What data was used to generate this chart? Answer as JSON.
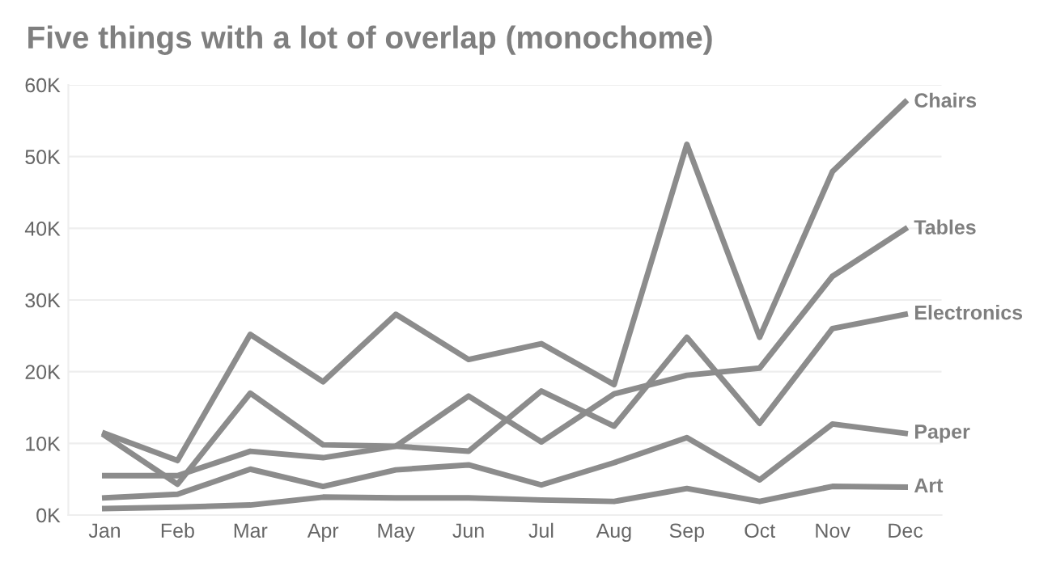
{
  "chart_data": {
    "type": "line",
    "title": "Five things with a lot of overlap (monochome)",
    "categories": [
      "Jan",
      "Feb",
      "Mar",
      "Apr",
      "May",
      "Jun",
      "Jul",
      "Aug",
      "Sep",
      "Oct",
      "Nov",
      "Dec"
    ],
    "series": [
      {
        "name": "Chairs",
        "color": "#8c8c8c",
        "values": [
          11.4,
          7.6,
          25.2,
          18.6,
          28.0,
          21.7,
          23.9,
          18.2,
          51.7,
          24.8,
          47.9,
          57.6
        ]
      },
      {
        "name": "Tables",
        "color": "#8c8c8c",
        "values": [
          5.5,
          5.5,
          8.9,
          8.0,
          9.6,
          16.6,
          10.2,
          16.9,
          19.5,
          20.5,
          33.3,
          39.9
        ]
      },
      {
        "name": "Electronics",
        "color": "#8c8c8c",
        "values": [
          11.1,
          4.3,
          17.0,
          9.8,
          9.6,
          8.9,
          17.3,
          12.4,
          24.8,
          12.8,
          26.0,
          28.0
        ]
      },
      {
        "name": "Paper",
        "color": "#8c8c8c",
        "values": [
          2.4,
          2.9,
          6.4,
          4.0,
          6.3,
          7.0,
          4.2,
          7.3,
          10.8,
          4.9,
          12.7,
          11.4
        ]
      },
      {
        "name": "Art",
        "color": "#8c8c8c",
        "values": [
          0.9,
          1.1,
          1.4,
          2.5,
          2.4,
          2.4,
          2.1,
          1.9,
          3.7,
          1.9,
          4.0,
          3.9
        ]
      }
    ],
    "ylim": [
      0,
      60
    ],
    "yticks": [
      {
        "value": 0,
        "label": "0K"
      },
      {
        "value": 10,
        "label": "10K"
      },
      {
        "value": 20,
        "label": "20K"
      },
      {
        "value": 30,
        "label": "30K"
      },
      {
        "value": 40,
        "label": "40K"
      },
      {
        "value": 50,
        "label": "50K"
      },
      {
        "value": 60,
        "label": "60K"
      }
    ],
    "grid": "y",
    "legend": false,
    "marker": "none",
    "line_style": "solid"
  }
}
